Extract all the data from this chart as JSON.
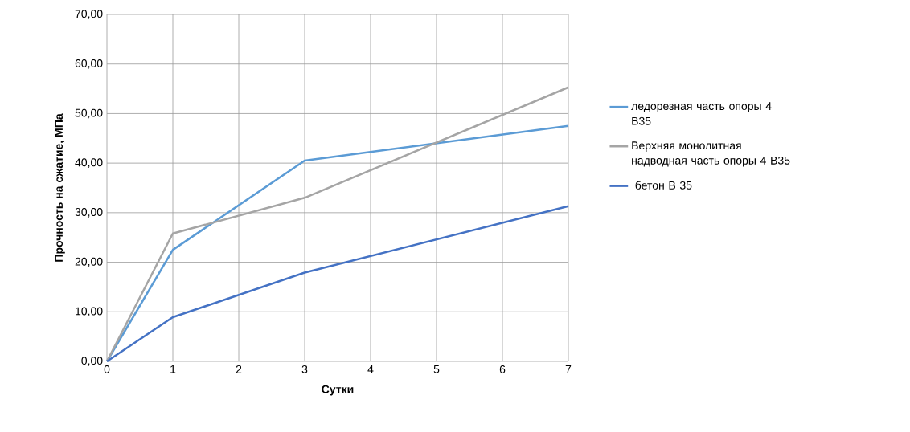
{
  "chart_data": {
    "type": "line",
    "xlabel": "Сутки",
    "ylabel": "Прочность на сжатие, МПа",
    "xlim": [
      0,
      7
    ],
    "xticks": [
      0,
      1,
      2,
      3,
      4,
      5,
      6,
      7
    ],
    "ylim": [
      0,
      70
    ],
    "yticks": [
      {
        "value": 0,
        "label": "0,00"
      },
      {
        "value": 10,
        "label": "10,00"
      },
      {
        "value": 20,
        "label": "20,00"
      },
      {
        "value": 30,
        "label": "30,00"
      },
      {
        "value": 40,
        "label": "40,00"
      },
      {
        "value": 50,
        "label": "50,00"
      },
      {
        "value": 60,
        "label": "60,00"
      },
      {
        "value": 70,
        "label": "70,00"
      }
    ],
    "grid": true,
    "legend": "right",
    "marker": "none",
    "line_style": "solid",
    "series": [
      {
        "name": "ледорезная  часть опоры 4 В35",
        "color": "#5b9bd5",
        "x": [
          0,
          1,
          3,
          7
        ],
        "values": [
          0,
          22.5,
          40.5,
          47.5
        ]
      },
      {
        "name": "Верхняя монолитная надводная часть  опоры 4 В35",
        "color": "#a5a5a5",
        "x": [
          0,
          1,
          3,
          7
        ],
        "values": [
          0,
          25.8,
          33.0,
          55.3
        ]
      },
      {
        "name": " бетон В 35",
        "color": "#4472c4",
        "x": [
          0,
          1,
          3,
          7
        ],
        "values": [
          0,
          8.9,
          17.9,
          31.3
        ]
      }
    ]
  }
}
